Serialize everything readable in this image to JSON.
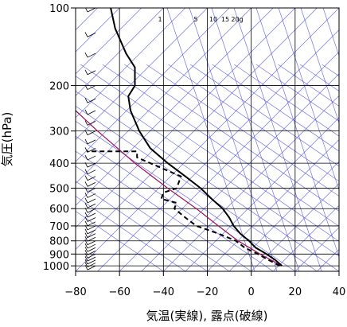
{
  "chart_data": {
    "type": "line",
    "title": "",
    "xlabel": "気温(実線), 露点(破線)",
    "ylabel": "気圧(hPa)",
    "xlim": [
      -80,
      40
    ],
    "ylim": [
      1050,
      100
    ],
    "y_scale": "log",
    "x_ticks": [
      "−80",
      "−60",
      "−40",
      "−20",
      "0",
      "20",
      "40"
    ],
    "y_ticks": [
      "100",
      "200",
      "300",
      "400",
      "500",
      "600",
      "700",
      "800",
      "900",
      "1000"
    ],
    "mixing_ratio_labels": [
      "1",
      "5",
      "10",
      "15",
      "20g"
    ],
    "series": [
      {
        "style": "solid",
        "color": "#000000",
        "points": [
          {
            "p": 1000,
            "t": 14
          },
          {
            "p": 950,
            "t": 11
          },
          {
            "p": 900,
            "t": 7
          },
          {
            "p": 850,
            "t": 2
          },
          {
            "p": 800,
            "t": -1
          },
          {
            "p": 750,
            "t": -5
          },
          {
            "p": 700,
            "t": -8
          },
          {
            "p": 650,
            "t": -10
          },
          {
            "p": 600,
            "t": -13
          },
          {
            "p": 550,
            "t": -18
          },
          {
            "p": 500,
            "t": -23
          },
          {
            "p": 450,
            "t": -30
          },
          {
            "p": 400,
            "t": -38
          },
          {
            "p": 350,
            "t": -46
          },
          {
            "p": 300,
            "t": -51
          },
          {
            "p": 250,
            "t": -55
          },
          {
            "p": 220,
            "t": -56
          },
          {
            "p": 200,
            "t": -53
          },
          {
            "p": 170,
            "t": -53
          },
          {
            "p": 150,
            "t": -57
          },
          {
            "p": 120,
            "t": -62
          },
          {
            "p": 100,
            "t": -64
          }
        ]
      },
      {
        "style": "dashed",
        "color": "#000000",
        "points": [
          {
            "p": 1000,
            "t": 13
          },
          {
            "p": 950,
            "t": 8
          },
          {
            "p": 900,
            "t": 3
          },
          {
            "p": 850,
            "t": -3
          },
          {
            "p": 800,
            "t": -7
          },
          {
            "p": 750,
            "t": -15
          },
          {
            "p": 700,
            "t": -25
          },
          {
            "p": 650,
            "t": -30
          },
          {
            "p": 600,
            "t": -35
          },
          {
            "p": 570,
            "t": -34
          },
          {
            "p": 550,
            "t": -41
          },
          {
            "p": 520,
            "t": -40
          },
          {
            "p": 500,
            "t": -34
          },
          {
            "p": 450,
            "t": -32
          },
          {
            "p": 400,
            "t": -46
          },
          {
            "p": 380,
            "t": -52
          },
          {
            "p": 360,
            "t": -52
          },
          {
            "p": 360,
            "t": -75
          }
        ]
      }
    ],
    "parcel_line": {
      "color": "#a0105a",
      "points": [
        {
          "p": 1000,
          "t": 14
        },
        {
          "p": 900,
          "t": 4
        },
        {
          "p": 800,
          "t": -6
        },
        {
          "p": 700,
          "t": -15
        },
        {
          "p": 600,
          "t": -25
        },
        {
          "p": 500,
          "t": -38
        },
        {
          "p": 400,
          "t": -53
        },
        {
          "p": 300,
          "t": -70
        },
        {
          "p": 250,
          "t": -80
        }
      ]
    },
    "wind_barbs": "left column",
    "grid": true,
    "colors": {
      "isotherm": "#5050e0",
      "grid": "#000000",
      "parcel": "#a0105a",
      "background": "#ffffff"
    }
  }
}
